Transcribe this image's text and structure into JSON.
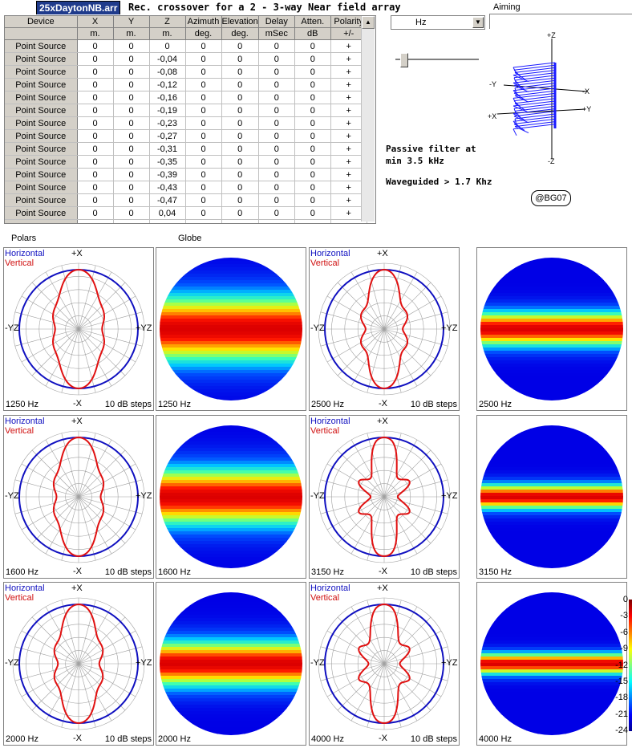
{
  "header": {
    "filename": "25xDaytonNB.arr",
    "title": "Rec. crossover for a 2 - 3-way Near field array"
  },
  "table": {
    "columns": [
      {
        "name": "Device",
        "unit": ""
      },
      {
        "name": "X",
        "unit": "m."
      },
      {
        "name": "Y",
        "unit": "m."
      },
      {
        "name": "Z",
        "unit": "m."
      },
      {
        "name": "Azimuth",
        "unit": "deg."
      },
      {
        "name": "Elevation",
        "unit": "deg."
      },
      {
        "name": "Delay",
        "unit": "mSec"
      },
      {
        "name": "Atten.",
        "unit": "dB"
      },
      {
        "name": "Polarity",
        "unit": "+/-"
      }
    ],
    "rows": [
      [
        "Point Source",
        "0",
        "0",
        "0",
        "0",
        "0",
        "0",
        "0",
        "+"
      ],
      [
        "Point Source",
        "0",
        "0",
        "-0,04",
        "0",
        "0",
        "0",
        "0",
        "+"
      ],
      [
        "Point Source",
        "0",
        "0",
        "-0,08",
        "0",
        "0",
        "0",
        "0",
        "+"
      ],
      [
        "Point Source",
        "0",
        "0",
        "-0,12",
        "0",
        "0",
        "0",
        "0",
        "+"
      ],
      [
        "Point Source",
        "0",
        "0",
        "-0,16",
        "0",
        "0",
        "0",
        "0",
        "+"
      ],
      [
        "Point Source",
        "0",
        "0",
        "-0,19",
        "0",
        "0",
        "0",
        "0",
        "+"
      ],
      [
        "Point Source",
        "0",
        "0",
        "-0,23",
        "0",
        "0",
        "0",
        "0",
        "+"
      ],
      [
        "Point Source",
        "0",
        "0",
        "-0,27",
        "0",
        "0",
        "0",
        "0",
        "+"
      ],
      [
        "Point Source",
        "0",
        "0",
        "-0,31",
        "0",
        "0",
        "0",
        "0",
        "+"
      ],
      [
        "Point Source",
        "0",
        "0",
        "-0,35",
        "0",
        "0",
        "0",
        "0",
        "+"
      ],
      [
        "Point Source",
        "0",
        "0",
        "-0,39",
        "0",
        "0",
        "0",
        "0",
        "+"
      ],
      [
        "Point Source",
        "0",
        "0",
        "-0,43",
        "0",
        "0",
        "0",
        "0",
        "+"
      ],
      [
        "Point Source",
        "0",
        "0",
        "-0,47",
        "0",
        "0",
        "0",
        "0",
        "+"
      ],
      [
        "Point Source",
        "0",
        "0",
        "0,04",
        "0",
        "0",
        "0",
        "0",
        "+"
      ]
    ]
  },
  "controls": {
    "freq_unit": "Hz",
    "aiming_label": "Aiming"
  },
  "aiming_view": {
    "axes": [
      "+Z",
      "-Y",
      "-X",
      "+X",
      "+Y",
      "-Z"
    ]
  },
  "notes": {
    "line1": "Passive filter at",
    "line2": "min 3.5 kHz",
    "line3": "Waveguided  > 1.7 Khz",
    "badge": "@BG07"
  },
  "sections": {
    "polars": "Polars",
    "globe": "Globe"
  },
  "polar_common": {
    "legend_horizontal": "Horizontal",
    "legend_vertical": "Vertical",
    "top": "+X",
    "bottom": "-X",
    "left": "-YZ",
    "right": "+YZ",
    "steps": "10 dB steps"
  },
  "plots": [
    {
      "freq": "1250 Hz",
      "lobe": 0.0
    },
    {
      "freq": "2500 Hz",
      "lobe": 0.35
    },
    {
      "freq": "1600 Hz",
      "lobe": 0.1
    },
    {
      "freq": "3150 Hz",
      "lobe": 0.7
    },
    {
      "freq": "2000 Hz",
      "lobe": 0.2
    },
    {
      "freq": "4000 Hz",
      "lobe": 0.55
    }
  ],
  "globes": [
    {
      "freq": "1250 Hz",
      "beam": 0.35
    },
    {
      "freq": "2500 Hz",
      "beam": 0.18
    },
    {
      "freq": "1600 Hz",
      "beam": 0.3
    },
    {
      "freq": "3150 Hz",
      "beam": 0.13
    },
    {
      "freq": "2000 Hz",
      "beam": 0.24
    },
    {
      "freq": "4000 Hz",
      "beam": 0.11
    }
  ],
  "colorbar": {
    "ticks": [
      "0",
      "-3",
      "-6",
      "-9",
      "-12",
      "-15",
      "-18",
      "-21",
      "-24"
    ],
    "colors": {
      "horizontal": "#1010c0",
      "vertical": "#e01010",
      "grid": "#a0a0a0"
    }
  }
}
